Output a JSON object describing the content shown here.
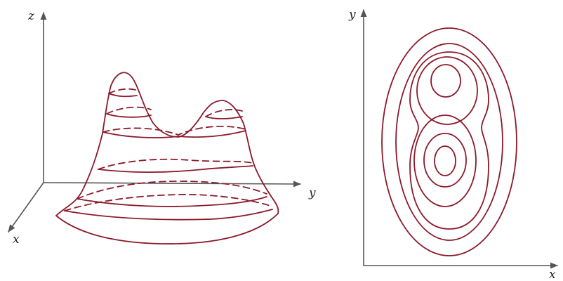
{
  "figure": {
    "surface_plot": {
      "axes": {
        "z_label": "z",
        "y_label": "y",
        "x_label": "x"
      }
    },
    "contour_plot": {
      "axes": {
        "y_label": "y",
        "x_label": "x"
      }
    }
  },
  "colors": {
    "curve": "#8b1a2b",
    "axis": "#555555",
    "label": "#222222"
  }
}
